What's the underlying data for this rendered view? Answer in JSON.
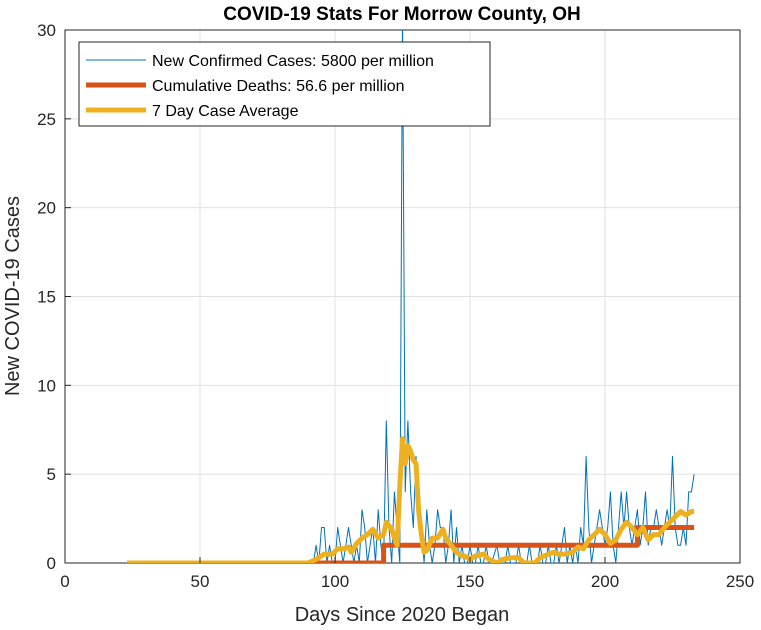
{
  "chart_data": {
    "type": "line",
    "title": "COVID-19 Stats For Morrow County, OH",
    "xlabel": "Days Since 2020 Began",
    "ylabel": "New COVID-19 Cases",
    "xlim": [
      0,
      250
    ],
    "ylim": [
      0,
      30
    ],
    "xticks": [
      0,
      50,
      100,
      150,
      200,
      250
    ],
    "yticks": [
      0,
      5,
      10,
      15,
      20,
      25,
      30
    ],
    "grid": true,
    "legend_position": "top-left",
    "series": [
      {
        "name": "New Confirmed Cases: 5800 per million",
        "color": "#0072BD",
        "points": [
          [
            23,
            0
          ],
          [
            80,
            0
          ],
          [
            90,
            0
          ],
          [
            92,
            0
          ],
          [
            93,
            1
          ],
          [
            94,
            0
          ],
          [
            95,
            2
          ],
          [
            96,
            2
          ],
          [
            97,
            0
          ],
          [
            98,
            1
          ],
          [
            99,
            0
          ],
          [
            100,
            0
          ],
          [
            101,
            2
          ],
          [
            102,
            1
          ],
          [
            103,
            0
          ],
          [
            104,
            1
          ],
          [
            105,
            2
          ],
          [
            106,
            1
          ],
          [
            107,
            0
          ],
          [
            108,
            1
          ],
          [
            109,
            0
          ],
          [
            110,
            3
          ],
          [
            111,
            2
          ],
          [
            112,
            0
          ],
          [
            113,
            1
          ],
          [
            114,
            2
          ],
          [
            115,
            0
          ],
          [
            116,
            3
          ],
          [
            117,
            1
          ],
          [
            118,
            0
          ],
          [
            119,
            8
          ],
          [
            120,
            2
          ],
          [
            121,
            0
          ],
          [
            122,
            4
          ],
          [
            123,
            2
          ],
          [
            124,
            0
          ],
          [
            125,
            31
          ],
          [
            126,
            4
          ],
          [
            127,
            8
          ],
          [
            128,
            4
          ],
          [
            129,
            2
          ],
          [
            130,
            6
          ],
          [
            131,
            2
          ],
          [
            132,
            2
          ],
          [
            133,
            0
          ],
          [
            134,
            3
          ],
          [
            135,
            1
          ],
          [
            136,
            0
          ],
          [
            137,
            1
          ],
          [
            138,
            3
          ],
          [
            139,
            2
          ],
          [
            140,
            2
          ],
          [
            141,
            0
          ],
          [
            142,
            1
          ],
          [
            143,
            3
          ],
          [
            144,
            0
          ],
          [
            145,
            2
          ],
          [
            146,
            0
          ],
          [
            147,
            1
          ],
          [
            148,
            0
          ],
          [
            149,
            0
          ],
          [
            150,
            1
          ],
          [
            151,
            0
          ],
          [
            152,
            0
          ],
          [
            153,
            1
          ],
          [
            154,
            0
          ],
          [
            155,
            0
          ],
          [
            156,
            1
          ],
          [
            157,
            0
          ],
          [
            158,
            0
          ],
          [
            160,
            1
          ],
          [
            161,
            0
          ],
          [
            163,
            0
          ],
          [
            164,
            1
          ],
          [
            165,
            0
          ],
          [
            167,
            0
          ],
          [
            168,
            1
          ],
          [
            169,
            0
          ],
          [
            171,
            0
          ],
          [
            172,
            1
          ],
          [
            173,
            0
          ],
          [
            175,
            0
          ],
          [
            176,
            1
          ],
          [
            177,
            0
          ],
          [
            178,
            0
          ],
          [
            179,
            1
          ],
          [
            180,
            0
          ],
          [
            181,
            0
          ],
          [
            182,
            1
          ],
          [
            183,
            0
          ],
          [
            184,
            1
          ],
          [
            185,
            2
          ],
          [
            186,
            0
          ],
          [
            187,
            1
          ],
          [
            188,
            0
          ],
          [
            189,
            1
          ],
          [
            190,
            0
          ],
          [
            191,
            2
          ],
          [
            192,
            1
          ],
          [
            193,
            6
          ],
          [
            194,
            2
          ],
          [
            195,
            0
          ],
          [
            196,
            1
          ],
          [
            197,
            2
          ],
          [
            198,
            3
          ],
          [
            199,
            2
          ],
          [
            200,
            1
          ],
          [
            201,
            2
          ],
          [
            202,
            4
          ],
          [
            203,
            1
          ],
          [
            204,
            0
          ],
          [
            205,
            2
          ],
          [
            206,
            4
          ],
          [
            207,
            2
          ],
          [
            208,
            4
          ],
          [
            209,
            2
          ],
          [
            210,
            1
          ],
          [
            211,
            2
          ],
          [
            212,
            3
          ],
          [
            213,
            1
          ],
          [
            214,
            2
          ],
          [
            215,
            4
          ],
          [
            216,
            1
          ],
          [
            217,
            2
          ],
          [
            218,
            2
          ],
          [
            219,
            3
          ],
          [
            220,
            2
          ],
          [
            221,
            1
          ],
          [
            222,
            2
          ],
          [
            223,
            3
          ],
          [
            224,
            2
          ],
          [
            225,
            6
          ],
          [
            226,
            2
          ],
          [
            227,
            1
          ],
          [
            228,
            1
          ],
          [
            229,
            2
          ],
          [
            230,
            1
          ],
          [
            231,
            4
          ],
          [
            232,
            4
          ],
          [
            233,
            5
          ]
        ]
      },
      {
        "name": "Cumulative Deaths: 56.6 per million",
        "color": "#D95319",
        "points": [
          [
            23,
            0
          ],
          [
            118,
            0
          ],
          [
            118,
            1
          ],
          [
            212,
            1
          ],
          [
            212,
            2
          ],
          [
            233,
            2
          ]
        ]
      },
      {
        "name": "7 Day Case Average",
        "color": "#EDB120",
        "points": [
          [
            23,
            0
          ],
          [
            90,
            0
          ],
          [
            93,
            0.2
          ],
          [
            96,
            0.5
          ],
          [
            99,
            0.5
          ],
          [
            101,
            0.8
          ],
          [
            103,
            0.8
          ],
          [
            105,
            0.9
          ],
          [
            106,
            0.6
          ],
          [
            108,
            1.1
          ],
          [
            110,
            1.4
          ],
          [
            112,
            1.6
          ],
          [
            114,
            1.9
          ],
          [
            116,
            1.4
          ],
          [
            118,
            1.6
          ],
          [
            119,
            2.3
          ],
          [
            121,
            1.9
          ],
          [
            122,
            1.4
          ],
          [
            123,
            1.0
          ],
          [
            124,
            4.3
          ],
          [
            125,
            7.0
          ],
          [
            126,
            5.6
          ],
          [
            127,
            6.6
          ],
          [
            128,
            6.3
          ],
          [
            129,
            5.8
          ],
          [
            130,
            5.6
          ],
          [
            131,
            2.9
          ],
          [
            132,
            1.6
          ],
          [
            133,
            0.6
          ],
          [
            134,
            0.7
          ],
          [
            136,
            1.4
          ],
          [
            138,
            1.4
          ],
          [
            140,
            1.9
          ],
          [
            141,
            1.4
          ],
          [
            143,
            1.0
          ],
          [
            145,
            0.6
          ],
          [
            147,
            0.4
          ],
          [
            148,
            0.4
          ],
          [
            150,
            0.2
          ],
          [
            152,
            0.4
          ],
          [
            155,
            0.5
          ],
          [
            157,
            0.2
          ],
          [
            160,
            0.0
          ],
          [
            162,
            0.2
          ],
          [
            165,
            0.3
          ],
          [
            168,
            0.3
          ],
          [
            170,
            0.0
          ],
          [
            174,
            0.0
          ],
          [
            176,
            0.3
          ],
          [
            179,
            0.5
          ],
          [
            181,
            0.6
          ],
          [
            183,
            0.5
          ],
          [
            185,
            0.5
          ],
          [
            188,
            0.6
          ],
          [
            190,
            0.9
          ],
          [
            192,
            0.8
          ],
          [
            194,
            1.3
          ],
          [
            196,
            1.6
          ],
          [
            198,
            1.9
          ],
          [
            200,
            1.6
          ],
          [
            202,
            1.1
          ],
          [
            204,
            1.3
          ],
          [
            206,
            1.9
          ],
          [
            208,
            2.3
          ],
          [
            210,
            2.0
          ],
          [
            212,
            1.6
          ],
          [
            214,
            2.0
          ],
          [
            216,
            1.3
          ],
          [
            218,
            1.6
          ],
          [
            220,
            1.6
          ],
          [
            222,
            2.0
          ],
          [
            224,
            2.3
          ],
          [
            226,
            2.6
          ],
          [
            228,
            2.9
          ],
          [
            230,
            2.7
          ],
          [
            232,
            2.9
          ],
          [
            233,
            2.9
          ]
        ]
      }
    ]
  }
}
